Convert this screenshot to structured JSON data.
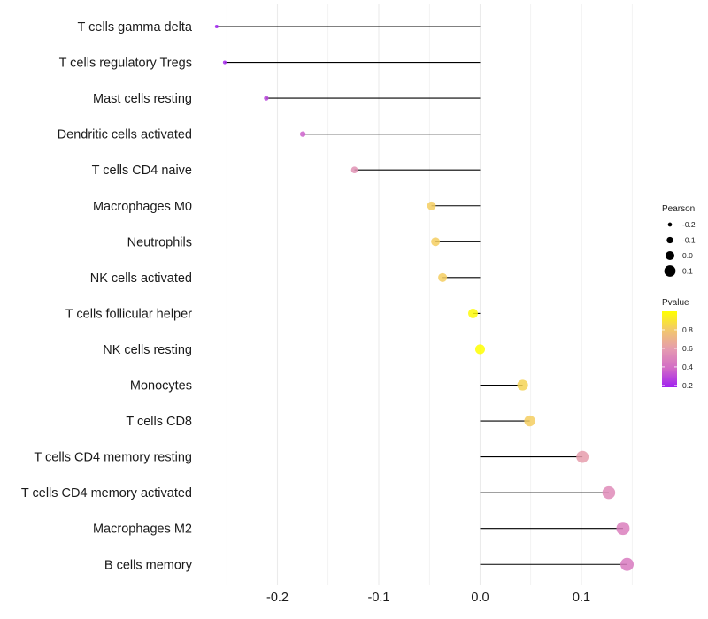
{
  "chart_data": {
    "type": "lollipop",
    "title": "",
    "xlabel": "",
    "ylabel": "",
    "xlim": [
      -0.27,
      0.167
    ],
    "x_ticks": [
      -0.2,
      -0.1,
      0.0,
      0.1
    ],
    "x_tick_labels": [
      "-0.2",
      "-0.1",
      "0.0",
      "0.1"
    ],
    "grid": true,
    "categories": [
      "T cells gamma delta",
      "T cells regulatory  Tregs ",
      "Mast cells resting",
      "Dendritic cells activated",
      "T cells CD4 naive",
      "Macrophages M0",
      "Neutrophils",
      "NK cells activated",
      "T cells follicular helper",
      "NK cells resting",
      "Monocytes",
      "T cells CD8",
      "T cells CD4 memory resting",
      "T cells CD4 memory activated",
      "Macrophages M2",
      "B cells memory"
    ],
    "series": [
      {
        "name": "Pearson",
        "values": [
          -0.26,
          -0.252,
          -0.211,
          -0.175,
          -0.124,
          -0.048,
          -0.044,
          -0.037,
          -0.007,
          0.0,
          0.042,
          0.049,
          0.101,
          0.127,
          0.141,
          0.145
        ]
      },
      {
        "name": "Pvalue",
        "values": [
          0.18,
          0.2,
          0.28,
          0.36,
          0.55,
          0.82,
          0.82,
          0.82,
          0.98,
          1.0,
          0.84,
          0.82,
          0.6,
          0.52,
          0.47,
          0.45
        ]
      }
    ],
    "legend": {
      "size": {
        "title": "Pearson",
        "labels": [
          "-0.2",
          "-0.1",
          "0.0",
          "0.1"
        ],
        "values": [
          -0.2,
          -0.1,
          0.0,
          0.1
        ],
        "placement": "right"
      },
      "color": {
        "title": "Pvalue",
        "labels": [
          "0.8",
          "0.6",
          "0.4",
          "0.2"
        ],
        "values": [
          0.8,
          0.6,
          0.4,
          0.2
        ],
        "range": [
          0.18,
          1.0
        ],
        "low_color": "#a020f0",
        "high_color": "#ffff00",
        "placement": "right"
      }
    }
  },
  "colors": {
    "gradient": [
      "#a020f0",
      "#d26bc6",
      "#e59bb0",
      "#f2c76d",
      "#ffff00"
    ],
    "stem": "#000000",
    "grid": "#ebebeb"
  }
}
